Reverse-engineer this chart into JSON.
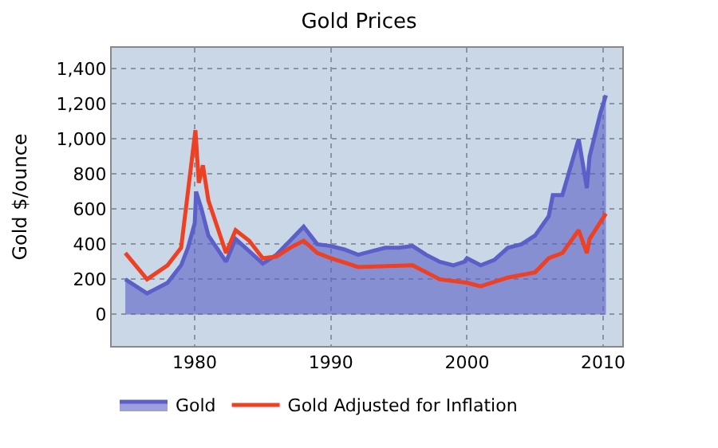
{
  "chart_data": {
    "type": "line",
    "title": "Gold Prices",
    "ylabel": "Gold $/ounce",
    "xlim": [
      1973.9,
      2011.4
    ],
    "xticks": [
      1980,
      1990,
      2000,
      2010
    ],
    "ylim": [
      -180,
      1520
    ],
    "yticks": [
      {
        "value": 0,
        "label": "0"
      },
      {
        "value": 200,
        "label": "200"
      },
      {
        "value": 400,
        "label": "400"
      },
      {
        "value": 600,
        "label": "600"
      },
      {
        "value": 800,
        "label": "800"
      },
      {
        "value": 1000,
        "label": "1,000"
      },
      {
        "value": 1200,
        "label": "1,200"
      },
      {
        "value": 1400,
        "label": "1,400"
      }
    ],
    "grid": true,
    "legend": "bottom",
    "marker": "none",
    "line_style": "solid",
    "series": [
      {
        "name": "Gold",
        "type": "area",
        "color": "#5b5fc7",
        "x": [
          1974.9,
          1976.5,
          1977,
          1978,
          1979,
          1979.5,
          1980.0,
          1980.1,
          1980.5,
          1981,
          1982.3,
          1983,
          1984,
          1985,
          1986,
          1987,
          1988,
          1989,
          1990,
          1991,
          1992,
          1993,
          1994,
          1995,
          1996,
          1997,
          1998,
          1999,
          1999.8,
          2000,
          2001,
          2002,
          2003,
          2004,
          2005,
          2006,
          2006.3,
          2007,
          2008.2,
          2008.8,
          2009,
          2009.8,
          2010.2
        ],
        "values": [
          200,
          120,
          140,
          180,
          280,
          380,
          520,
          700,
          600,
          450,
          300,
          430,
          360,
          290,
          340,
          420,
          500,
          400,
          390,
          370,
          340,
          360,
          380,
          380,
          390,
          340,
          300,
          280,
          300,
          320,
          280,
          310,
          380,
          400,
          450,
          560,
          680,
          680,
          1000,
          720,
          900,
          1150,
          1250
        ]
      },
      {
        "name": "Gold Adjusted for Inflation",
        "color": "#ee4022",
        "x": [
          1974.9,
          1976.5,
          1978,
          1979,
          1980.05,
          1980.3,
          1980.6,
          1981,
          1982.3,
          1983,
          1984,
          1985,
          1986,
          1987,
          1988,
          1989,
          1990,
          1992,
          1996,
          1998,
          2000,
          2001,
          2003,
          2005,
          2006,
          2007,
          2008.2,
          2008.8,
          2009,
          2010.2
        ],
        "values": [
          350,
          200,
          280,
          380,
          1050,
          750,
          850,
          650,
          350,
          480,
          420,
          320,
          330,
          380,
          420,
          350,
          320,
          270,
          280,
          200,
          180,
          160,
          210,
          240,
          320,
          350,
          480,
          350,
          430,
          575
        ]
      }
    ]
  }
}
